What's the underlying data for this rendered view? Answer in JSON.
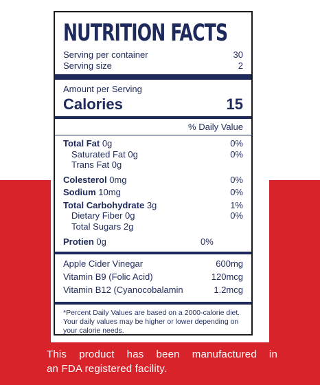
{
  "label": {
    "title": "NUTRITION FACTS",
    "serving_per_container_label": "Serving per container",
    "serving_per_container_value": "30",
    "serving_size_label": "Serving size",
    "serving_size_value": "2",
    "amount_per_serving": "Amount per Serving",
    "calories_label": "Calories",
    "calories_value": "15",
    "daily_value_header": "% Daily Value",
    "nutrients": [
      {
        "bold": "Total Fat",
        "rest": " 0g",
        "dv": "0%"
      },
      {
        "rest": "Saturated Fat 0g",
        "dv": "0%"
      },
      {
        "rest": "Trans Fat 0g",
        "dv": ""
      },
      {
        "bold": "Colesterol",
        "rest": " 0mg",
        "dv": "0%"
      },
      {
        "bold": "Sodium",
        "rest": " 10mg",
        "dv": "0%"
      },
      {
        "bold": "Total Carbohydrate",
        "rest": " 3g",
        "dv": "1%"
      },
      {
        "rest": "Dietary Fiber 0g",
        "dv": "0%"
      },
      {
        "rest": "Total Sugars 2g",
        "dv": ""
      },
      {
        "bold": "Protien",
        "rest": " 0g",
        "dv": "0%"
      }
    ],
    "vitamins": [
      {
        "name": "Apple Cider Vinegar",
        "amount": "600mg"
      },
      {
        "name": "Vitamin B9 (Folic Acid)",
        "amount": "120mcg"
      },
      {
        "name": "Vitamin B12 (Cyanocobalamin",
        "amount": "1.2mcg"
      }
    ],
    "footnote_line1": "*Percent Daily Values are based on a 2000-calorie diet.",
    "footnote_line2": "Your daily values may be higher or lower depending on",
    "footnote_line3": "your calorie needs."
  },
  "caption": {
    "line1": "This product has been manufactured in",
    "line2": "an FDA registered facility."
  },
  "colors": {
    "accent_red": "#d8232a",
    "navy_text": "#1f2a5c"
  }
}
